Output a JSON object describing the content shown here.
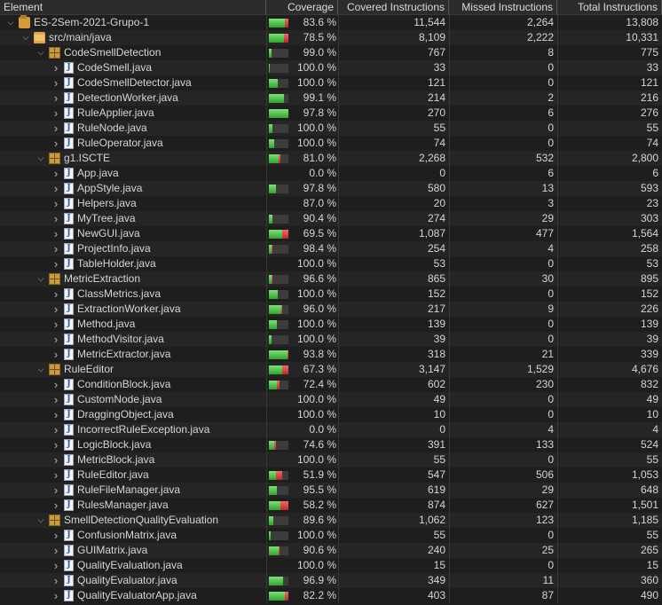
{
  "columns": {
    "element": "Element",
    "coverage": "Coverage",
    "covered": "Covered Instructions",
    "missed": "Missed Instructions",
    "total": "Total Instructions"
  },
  "colors": {
    "covered_bar": "#3fbf3a",
    "missed_bar": "#d93434",
    "background": "#1e1e1e"
  },
  "rows": [
    {
      "name": "ES-2Sem-2021-Grupo-1",
      "level": 0,
      "icon": "project",
      "coverage": "83.6 %",
      "covered": "11,544",
      "missed": "2,264",
      "total": "13,808",
      "bar_total": 1.0
    },
    {
      "name": "src/main/java",
      "level": 1,
      "icon": "folder",
      "coverage": "78.5 %",
      "covered": "8,109",
      "missed": "2,222",
      "total": "10,331",
      "bar_total": 1.0
    },
    {
      "name": "CodeSmellDetection",
      "level": 2,
      "icon": "package",
      "coverage": "99.0 %",
      "covered": "767",
      "missed": "8",
      "total": "775",
      "bar_total": 0.12
    },
    {
      "name": "CodeSmell.java",
      "level": 3,
      "icon": "java",
      "coverage": "100.0 %",
      "covered": "33",
      "missed": "0",
      "total": "33",
      "bar_total": 0.04
    },
    {
      "name": "CodeSmellDetector.java",
      "level": 3,
      "icon": "java",
      "coverage": "100.0 %",
      "covered": "121",
      "missed": "0",
      "total": "121",
      "bar_total": 0.45
    },
    {
      "name": "DetectionWorker.java",
      "level": 3,
      "icon": "java",
      "coverage": "99.1 %",
      "covered": "214",
      "missed": "2",
      "total": "216",
      "bar_total": 0.78
    },
    {
      "name": "RuleApplier.java",
      "level": 3,
      "icon": "java",
      "coverage": "97.8 %",
      "covered": "270",
      "missed": "6",
      "total": "276",
      "bar_total": 1.0
    },
    {
      "name": "RuleNode.java",
      "level": 3,
      "icon": "java",
      "coverage": "100.0 %",
      "covered": "55",
      "missed": "0",
      "total": "55",
      "bar_total": 0.2
    },
    {
      "name": "RuleOperator.java",
      "level": 3,
      "icon": "java",
      "coverage": "100.0 %",
      "covered": "74",
      "missed": "0",
      "total": "74",
      "bar_total": 0.27
    },
    {
      "name": "g1.ISCTE",
      "level": 2,
      "icon": "package",
      "coverage": "81.0 %",
      "covered": "2,268",
      "missed": "532",
      "total": "2,800",
      "bar_total": 0.6
    },
    {
      "name": "App.java",
      "level": 3,
      "icon": "java",
      "coverage": "0.0 %",
      "covered": "0",
      "missed": "6",
      "total": "6",
      "bar_total": 0.0
    },
    {
      "name": "AppStyle.java",
      "level": 3,
      "icon": "java",
      "coverage": "97.8 %",
      "covered": "580",
      "missed": "13",
      "total": "593",
      "bar_total": 0.38
    },
    {
      "name": "Helpers.java",
      "level": 3,
      "icon": "java",
      "coverage": "87.0 %",
      "covered": "20",
      "missed": "3",
      "total": "23",
      "bar_total": 0.0
    },
    {
      "name": "MyTree.java",
      "level": 3,
      "icon": "java",
      "coverage": "90.4 %",
      "covered": "274",
      "missed": "29",
      "total": "303",
      "bar_total": 0.19
    },
    {
      "name": "NewGUI.java",
      "level": 3,
      "icon": "java",
      "coverage": "69.5 %",
      "covered": "1,087",
      "missed": "477",
      "total": "1,564",
      "bar_total": 1.0
    },
    {
      "name": "ProjectInfo.java",
      "level": 3,
      "icon": "java",
      "coverage": "98.4 %",
      "covered": "254",
      "missed": "4",
      "total": "258",
      "bar_total": 0.16
    },
    {
      "name": "TableHolder.java",
      "level": 3,
      "icon": "java",
      "coverage": "100.0 %",
      "covered": "53",
      "missed": "0",
      "total": "53",
      "bar_total": 0.0
    },
    {
      "name": "MetricExtraction",
      "level": 2,
      "icon": "package",
      "coverage": "96.6 %",
      "covered": "865",
      "missed": "30",
      "total": "895",
      "bar_total": 0.16
    },
    {
      "name": "ClassMetrics.java",
      "level": 3,
      "icon": "java",
      "coverage": "100.0 %",
      "covered": "152",
      "missed": "0",
      "total": "152",
      "bar_total": 0.45
    },
    {
      "name": "ExtractionWorker.java",
      "level": 3,
      "icon": "java",
      "coverage": "96.0 %",
      "covered": "217",
      "missed": "9",
      "total": "226",
      "bar_total": 0.67
    },
    {
      "name": "Method.java",
      "level": 3,
      "icon": "java",
      "coverage": "100.0 %",
      "covered": "139",
      "missed": "0",
      "total": "139",
      "bar_total": 0.41
    },
    {
      "name": "MethodVisitor.java",
      "level": 3,
      "icon": "java",
      "coverage": "100.0 %",
      "covered": "39",
      "missed": "0",
      "total": "39",
      "bar_total": 0.12
    },
    {
      "name": "MetricExtractor.java",
      "level": 3,
      "icon": "java",
      "coverage": "93.8 %",
      "covered": "318",
      "missed": "21",
      "total": "339",
      "bar_total": 1.0
    },
    {
      "name": "RuleEditor",
      "level": 2,
      "icon": "package",
      "coverage": "67.3 %",
      "covered": "3,147",
      "missed": "1,529",
      "total": "4,676",
      "bar_total": 1.0
    },
    {
      "name": "ConditionBlock.java",
      "level": 3,
      "icon": "java",
      "coverage": "72.4 %",
      "covered": "602",
      "missed": "230",
      "total": "832",
      "bar_total": 0.55
    },
    {
      "name": "CustomNode.java",
      "level": 3,
      "icon": "java",
      "coverage": "100.0 %",
      "covered": "49",
      "missed": "0",
      "total": "49",
      "bar_total": 0.0
    },
    {
      "name": "DraggingObject.java",
      "level": 3,
      "icon": "java",
      "coverage": "100.0 %",
      "covered": "10",
      "missed": "0",
      "total": "10",
      "bar_total": 0.0
    },
    {
      "name": "IncorrectRuleException.java",
      "level": 3,
      "icon": "java",
      "coverage": "0.0 %",
      "covered": "0",
      "missed": "4",
      "total": "4",
      "bar_total": 0.0
    },
    {
      "name": "LogicBlock.java",
      "level": 3,
      "icon": "java",
      "coverage": "74.6 %",
      "covered": "391",
      "missed": "133",
      "total": "524",
      "bar_total": 0.35
    },
    {
      "name": "MetricBlock.java",
      "level": 3,
      "icon": "java",
      "coverage": "100.0 %",
      "covered": "55",
      "missed": "0",
      "total": "55",
      "bar_total": 0.0
    },
    {
      "name": "RuleEditor.java",
      "level": 3,
      "icon": "java",
      "coverage": "51.9 %",
      "covered": "547",
      "missed": "506",
      "total": "1,053",
      "bar_total": 0.7
    },
    {
      "name": "RuleFileManager.java",
      "level": 3,
      "icon": "java",
      "coverage": "95.5 %",
      "covered": "619",
      "missed": "29",
      "total": "648",
      "bar_total": 0.43
    },
    {
      "name": "RulesManager.java",
      "level": 3,
      "icon": "java",
      "coverage": "58.2 %",
      "covered": "874",
      "missed": "627",
      "total": "1,501",
      "bar_total": 1.0
    },
    {
      "name": "SmellDetectionQualityEvaluation",
      "level": 2,
      "icon": "package",
      "coverage": "89.6 %",
      "covered": "1,062",
      "missed": "123",
      "total": "1,185",
      "bar_total": 0.25
    },
    {
      "name": "ConfusionMatrix.java",
      "level": 3,
      "icon": "java",
      "coverage": "100.0 %",
      "covered": "55",
      "missed": "0",
      "total": "55",
      "bar_total": 0.11
    },
    {
      "name": "GUIMatrix.java",
      "level": 3,
      "icon": "java",
      "coverage": "90.6 %",
      "covered": "240",
      "missed": "25",
      "total": "265",
      "bar_total": 0.54
    },
    {
      "name": "QualityEvaluation.java",
      "level": 3,
      "icon": "java",
      "coverage": "100.0 %",
      "covered": "15",
      "missed": "0",
      "total": "15",
      "bar_total": 0.0
    },
    {
      "name": "QualityEvaluator.java",
      "level": 3,
      "icon": "java",
      "coverage": "96.9 %",
      "covered": "349",
      "missed": "11",
      "total": "360",
      "bar_total": 0.73
    },
    {
      "name": "QualityEvaluatorApp.java",
      "level": 3,
      "icon": "java",
      "coverage": "82.2 %",
      "covered": "403",
      "missed": "87",
      "total": "490",
      "bar_total": 1.0
    }
  ]
}
